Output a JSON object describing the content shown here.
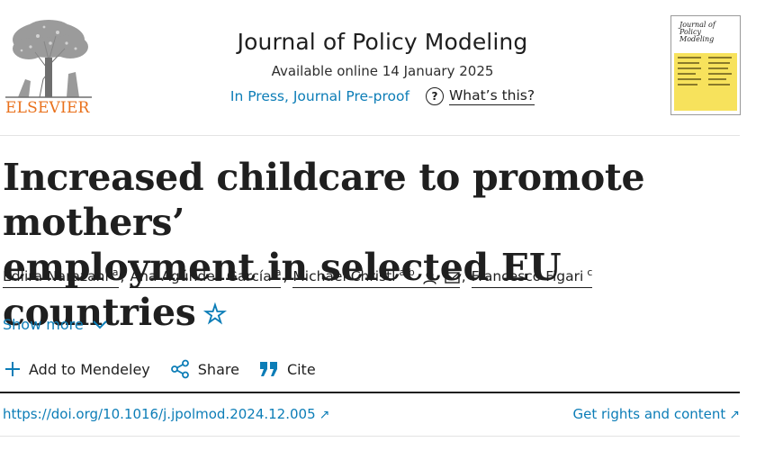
{
  "publisher": {
    "name": "ELSEVIER"
  },
  "journal": {
    "title": "Journal of Policy Modeling",
    "available": "Available online 14 January 2025",
    "status": "In Press, Journal Pre-proof",
    "help_label": "What’s this?",
    "cover_title": "Journal of Policy Modeling"
  },
  "article": {
    "title_line1": "Increased childcare to promote mothers’",
    "title_line2": "employment in selected EU countries"
  },
  "authors": [
    {
      "name": "Edlira Narazani",
      "aff": "a"
    },
    {
      "name": "Ana Agúndez García",
      "aff": "a"
    },
    {
      "name": "Michael Christl",
      "aff": "a b"
    },
    {
      "name": "Francesco Figari",
      "aff": "c"
    }
  ],
  "show_more": "Show more",
  "actions": {
    "mendeley": "Add to Mendeley",
    "share": "Share",
    "cite": "Cite"
  },
  "links": {
    "doi": "https://doi.org/10.1016/j.jpolmod.2024.12.005",
    "rights": "Get rights and content"
  },
  "colors": {
    "link": "#0c7db7",
    "publisher": "#e9711c",
    "cover": "#f7e25c"
  }
}
